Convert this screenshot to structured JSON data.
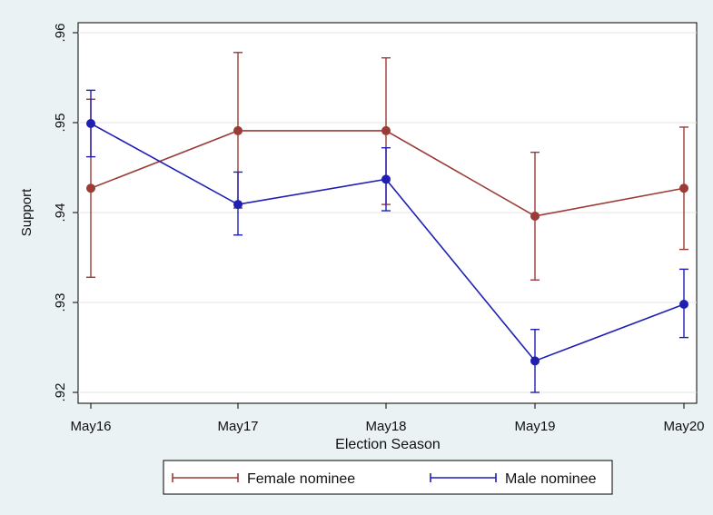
{
  "chart_data": {
    "type": "line",
    "xlabel": "Election Season",
    "ylabel": "Support",
    "categories": [
      "May16",
      "May17",
      "May18",
      "May19",
      "May20"
    ],
    "y_ticks": [
      ".92",
      ".93",
      ".94",
      ".95",
      ".96"
    ],
    "ylim": [
      0.92,
      0.96
    ],
    "grid": true,
    "legend_position": "bottom",
    "series": [
      {
        "name": "Female nominee",
        "color": "#9b3b37",
        "values": [
          0.9427,
          0.9491,
          0.9491,
          0.9396,
          0.9427
        ],
        "lower": [
          0.9328,
          0.9405,
          0.9409,
          0.9325,
          0.9359
        ],
        "upper": [
          0.9526,
          0.9578,
          0.9572,
          0.9467,
          0.9495
        ]
      },
      {
        "name": "Male nominee",
        "color": "#1f1fb4",
        "values": [
          0.9499,
          0.9409,
          0.9437,
          0.9235,
          0.9298
        ],
        "lower": [
          0.9462,
          0.9375,
          0.9402,
          0.92,
          0.9261
        ],
        "upper": [
          0.9536,
          0.9445,
          0.9472,
          0.927,
          0.9337
        ]
      }
    ]
  }
}
